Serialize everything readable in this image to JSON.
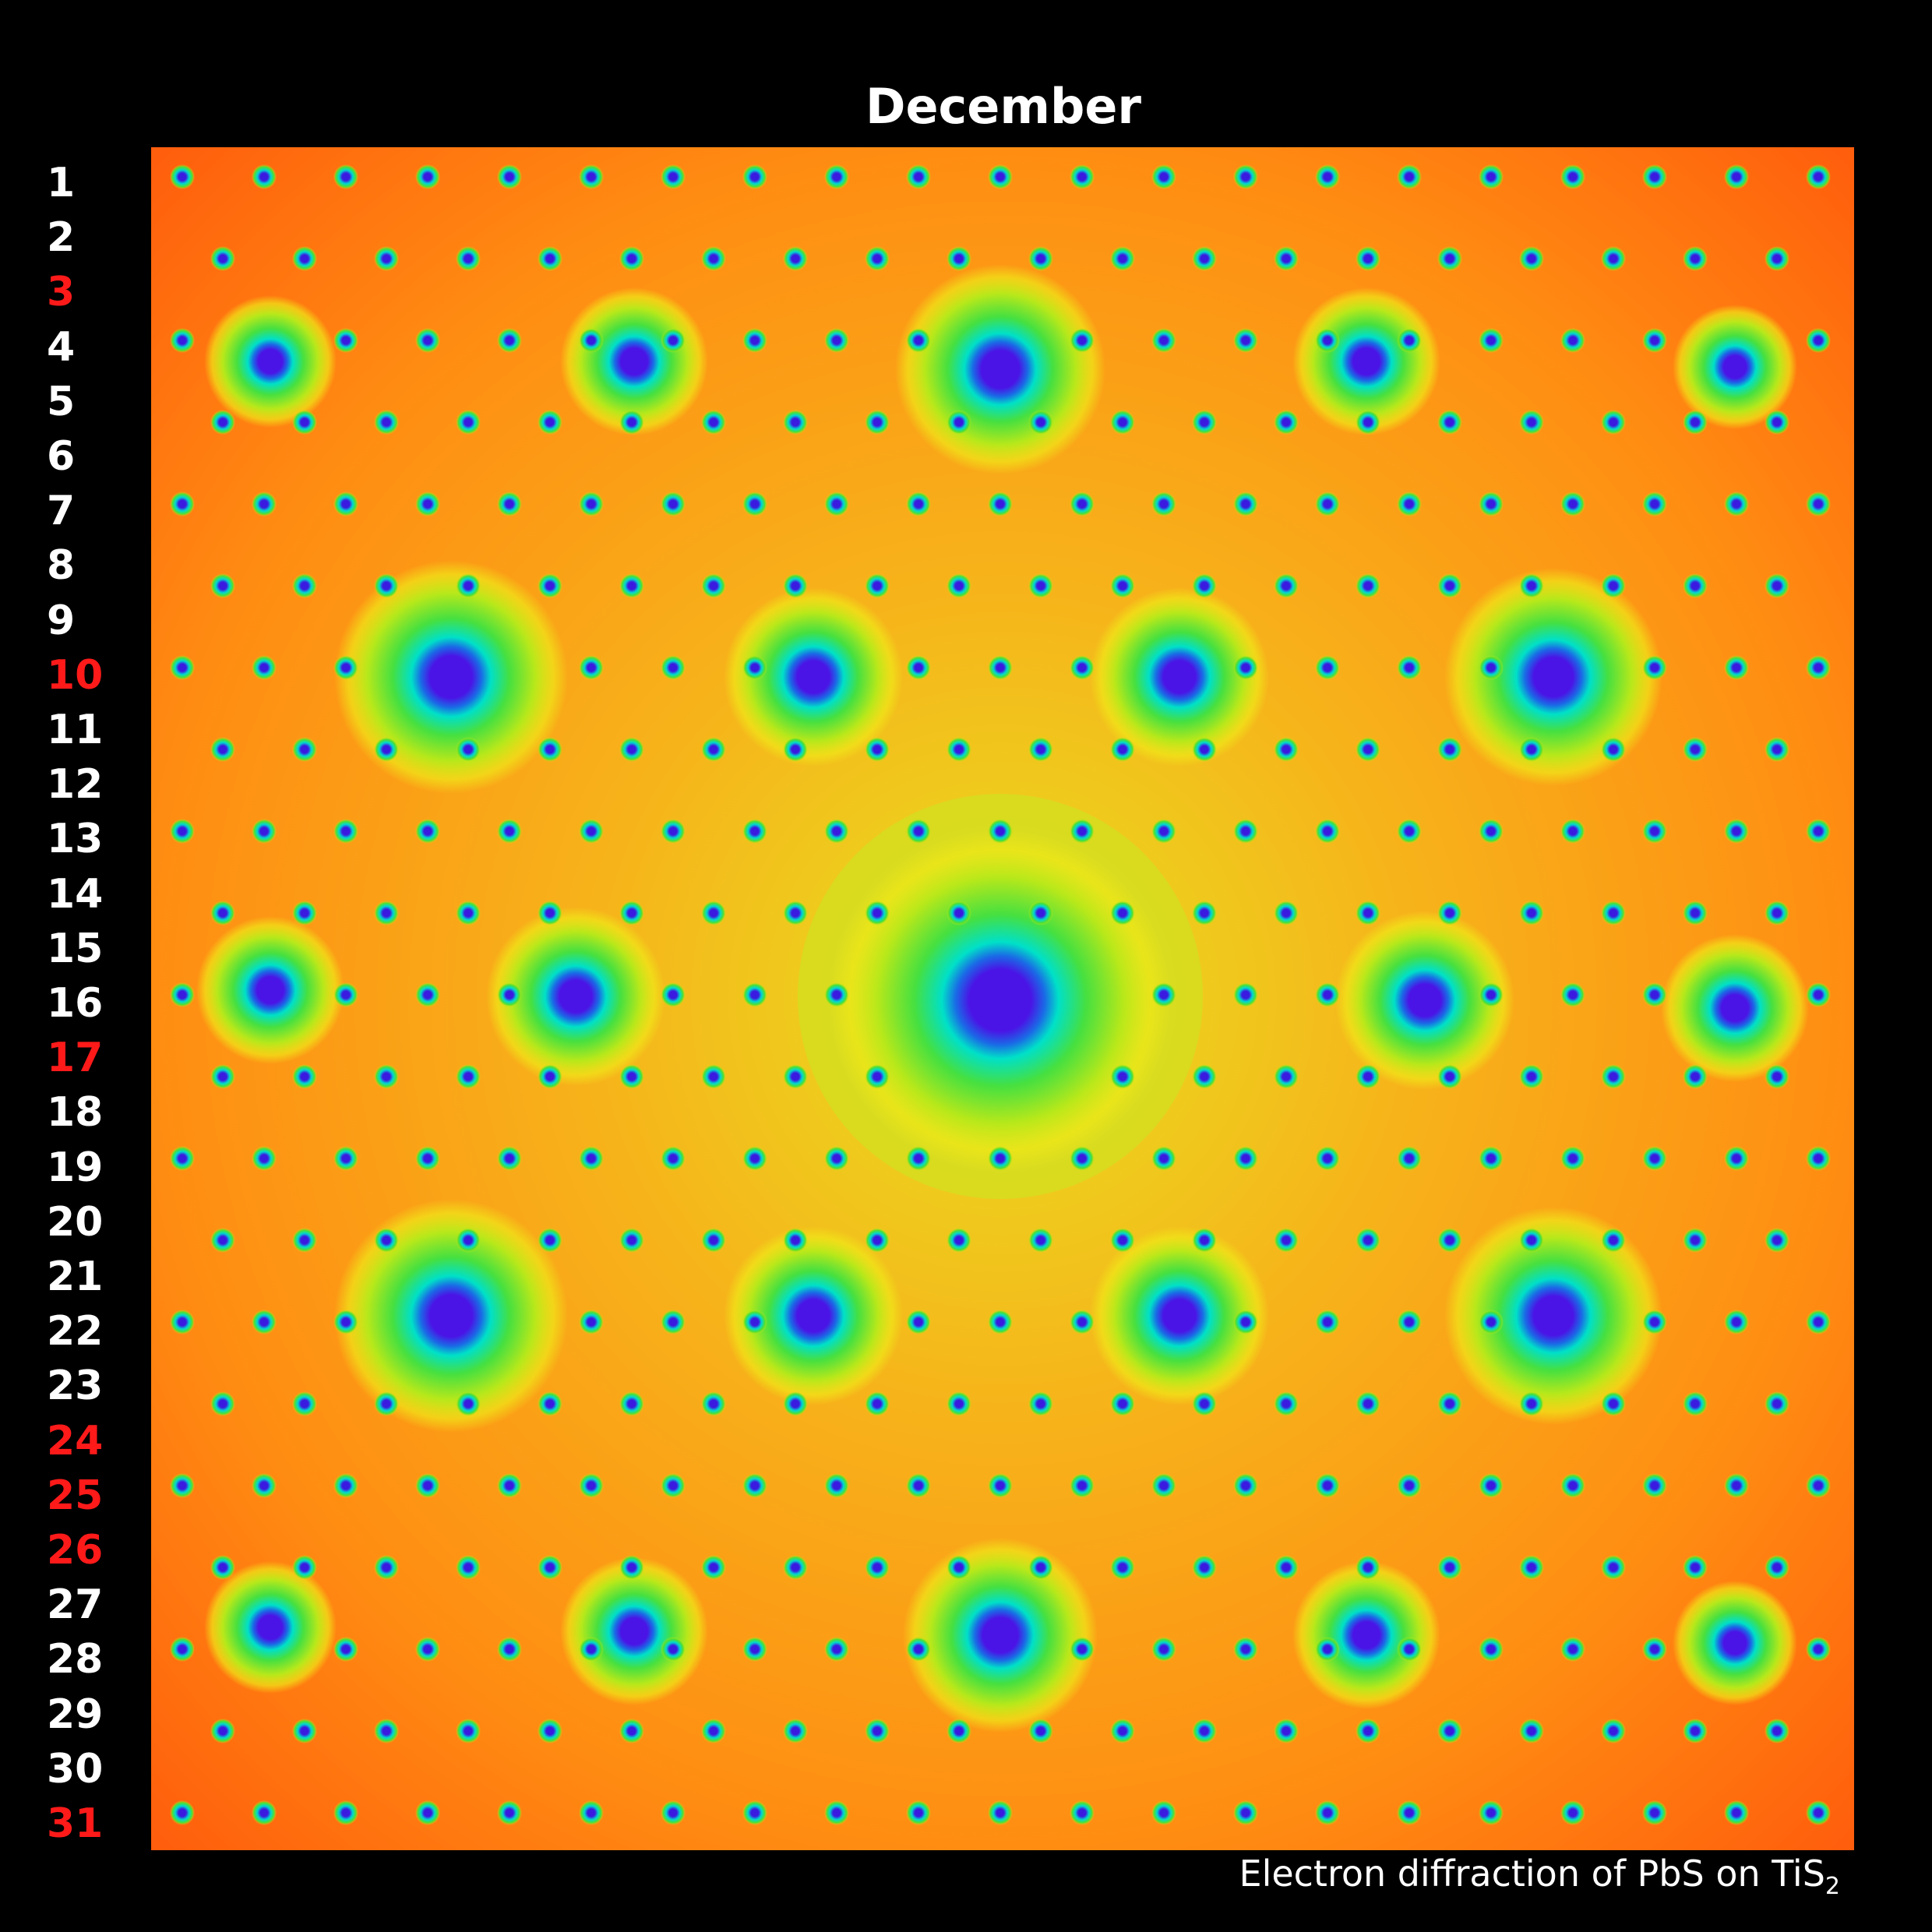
{
  "title": "December",
  "days": [
    {
      "label": "1",
      "weekend": false
    },
    {
      "label": "2",
      "weekend": false
    },
    {
      "label": "3",
      "weekend": true
    },
    {
      "label": "4",
      "weekend": false
    },
    {
      "label": "5",
      "weekend": false
    },
    {
      "label": "6",
      "weekend": false
    },
    {
      "label": "7",
      "weekend": false
    },
    {
      "label": "8",
      "weekend": false
    },
    {
      "label": "9",
      "weekend": false
    },
    {
      "label": "10",
      "weekend": true
    },
    {
      "label": "11",
      "weekend": false
    },
    {
      "label": "12",
      "weekend": false
    },
    {
      "label": "13",
      "weekend": false
    },
    {
      "label": "14",
      "weekend": false
    },
    {
      "label": "15",
      "weekend": false
    },
    {
      "label": "16",
      "weekend": false
    },
    {
      "label": "17",
      "weekend": true
    },
    {
      "label": "18",
      "weekend": false
    },
    {
      "label": "19",
      "weekend": false
    },
    {
      "label": "20",
      "weekend": false
    },
    {
      "label": "21",
      "weekend": false
    },
    {
      "label": "22",
      "weekend": false
    },
    {
      "label": "23",
      "weekend": false
    },
    {
      "label": "24",
      "weekend": true
    },
    {
      "label": "25",
      "weekend": true
    },
    {
      "label": "26",
      "weekend": true
    },
    {
      "label": "27",
      "weekend": false
    },
    {
      "label": "28",
      "weekend": false
    },
    {
      "label": "29",
      "weekend": false
    },
    {
      "label": "30",
      "weekend": false
    },
    {
      "label": "31",
      "weekend": true
    }
  ],
  "caption": {
    "text": "Electron diffraction of PbS on TiS",
    "subscript": "2"
  },
  "colors": {
    "background": "#000000",
    "day_text": "#ffffff",
    "weekend_text": "#ff1a1a",
    "pattern_background": "#ff7a10",
    "pattern_center_glow": "#f2e020",
    "spot_core": "#4a14e6",
    "spot_ring": "#00e0c8",
    "spot_halo": "#7ae020"
  }
}
